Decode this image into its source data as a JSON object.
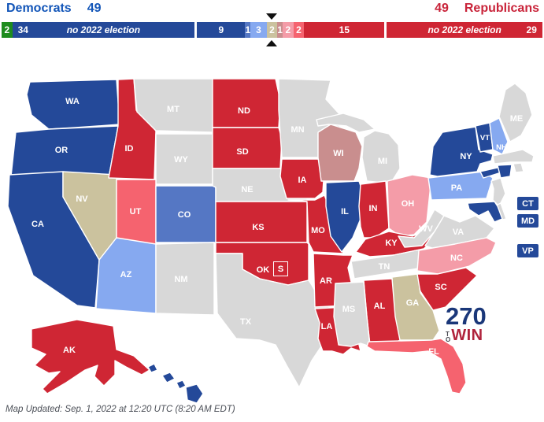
{
  "header": {
    "democrats_label": "Democrats",
    "democrats_count": "49",
    "republicans_count": "49",
    "republicans_label": "Republicans"
  },
  "bar": {
    "no_election_note": "no 2022 election",
    "segments": [
      {
        "id": "independent-no-election",
        "seats": 2,
        "display": "2",
        "category": "independent"
      },
      {
        "id": "dem-no-election",
        "seats": 34,
        "display": "34",
        "category": "safe_dem",
        "note": true
      },
      {
        "id": "dem-safe",
        "seats": 9,
        "display": "9",
        "category": "safe_dem",
        "gap_before": true
      },
      {
        "id": "dem-likely",
        "seats": 1,
        "display": "1",
        "category": "likely_dem"
      },
      {
        "id": "dem-lean",
        "seats": 3,
        "display": "3",
        "category": "lean_dem"
      },
      {
        "id": "tossup",
        "seats": 2,
        "display": "2",
        "category": "tossup"
      },
      {
        "id": "rep-tilt",
        "seats": 1,
        "display": "1",
        "category": "tilt_rep"
      },
      {
        "id": "rep-lean",
        "seats": 2,
        "display": "2",
        "category": "lean_rep"
      },
      {
        "id": "rep-likely",
        "seats": 2,
        "display": "2",
        "category": "likely_rep"
      },
      {
        "id": "rep-safe",
        "seats": 15,
        "display": "15",
        "category": "safe_rep"
      },
      {
        "id": "rep-no-election",
        "seats": 29,
        "display": "29",
        "category": "safe_rep",
        "note": true,
        "num_right": true,
        "gap_before": true
      }
    ]
  },
  "map": {
    "special_marker": {
      "state": "OK",
      "label": "S"
    },
    "states": [
      {
        "code": "WA",
        "category": "safe_dem",
        "labeled": true
      },
      {
        "code": "OR",
        "category": "safe_dem",
        "labeled": true
      },
      {
        "code": "CA",
        "category": "safe_dem",
        "labeled": true
      },
      {
        "code": "NV",
        "category": "tossup",
        "labeled": true
      },
      {
        "code": "ID",
        "category": "safe_rep",
        "labeled": true
      },
      {
        "code": "MT",
        "category": "no_election",
        "labeled": true
      },
      {
        "code": "WY",
        "category": "no_election",
        "labeled": true
      },
      {
        "code": "UT",
        "category": "likely_rep",
        "labeled": true
      },
      {
        "code": "AZ",
        "category": "lean_dem",
        "labeled": true
      },
      {
        "code": "CO",
        "category": "likely_dem",
        "labeled": true
      },
      {
        "code": "NM",
        "category": "no_election",
        "labeled": true
      },
      {
        "code": "ND",
        "category": "safe_rep",
        "labeled": true
      },
      {
        "code": "SD",
        "category": "safe_rep",
        "labeled": true
      },
      {
        "code": "NE",
        "category": "no_election",
        "labeled": true
      },
      {
        "code": "KS",
        "category": "safe_rep",
        "labeled": true
      },
      {
        "code": "OK",
        "category": "safe_rep",
        "labeled": true
      },
      {
        "code": "TX",
        "category": "no_election",
        "labeled": true
      },
      {
        "code": "MN",
        "category": "no_election",
        "labeled": true
      },
      {
        "code": "IA",
        "category": "safe_rep",
        "labeled": true
      },
      {
        "code": "MO",
        "category": "safe_rep",
        "labeled": true
      },
      {
        "code": "AR",
        "category": "safe_rep",
        "labeled": true
      },
      {
        "code": "LA",
        "category": "safe_rep",
        "labeled": true
      },
      {
        "code": "WI",
        "category": "tilt_rep",
        "labeled": true
      },
      {
        "code": "IL",
        "category": "safe_dem",
        "labeled": true
      },
      {
        "code": "MI",
        "category": "no_election",
        "labeled": true
      },
      {
        "code": "IN",
        "category": "safe_rep",
        "labeled": true
      },
      {
        "code": "OH",
        "category": "lean_rep",
        "labeled": true
      },
      {
        "code": "KY",
        "category": "safe_rep",
        "labeled": true
      },
      {
        "code": "TN",
        "category": "no_election",
        "labeled": true
      },
      {
        "code": "WV",
        "category": "no_election",
        "labeled": true
      },
      {
        "code": "VA",
        "category": "no_election",
        "labeled": true
      },
      {
        "code": "NC",
        "category": "lean_rep",
        "labeled": true
      },
      {
        "code": "SC",
        "category": "safe_rep",
        "labeled": true
      },
      {
        "code": "GA",
        "category": "tossup",
        "labeled": true
      },
      {
        "code": "AL",
        "category": "safe_rep",
        "labeled": true
      },
      {
        "code": "MS",
        "category": "no_election",
        "labeled": true
      },
      {
        "code": "FL",
        "category": "likely_rep",
        "labeled": true
      },
      {
        "code": "PA",
        "category": "lean_dem",
        "labeled": true
      },
      {
        "code": "NY",
        "category": "safe_dem",
        "labeled": true
      },
      {
        "code": "NJ",
        "category": "no_election",
        "labeled": false
      },
      {
        "code": "VT",
        "category": "safe_dem",
        "labeled": true
      },
      {
        "code": "NH",
        "category": "lean_dem",
        "labeled": true
      },
      {
        "code": "ME",
        "category": "no_election",
        "labeled": true
      },
      {
        "code": "MA",
        "category": "no_election",
        "labeled": false
      },
      {
        "code": "RI",
        "category": "no_election",
        "labeled": false
      },
      {
        "code": "CT",
        "category": "safe_dem",
        "labeled": false
      },
      {
        "code": "DE",
        "category": "no_election",
        "labeled": false
      },
      {
        "code": "MD",
        "category": "safe_dem",
        "labeled": false
      },
      {
        "code": "AK",
        "category": "safe_rep",
        "labeled": true
      },
      {
        "code": "HI",
        "category": "safe_dem",
        "labeled": true
      }
    ]
  },
  "side_boxes": [
    {
      "label": "CT",
      "category": "safe_dem"
    },
    {
      "label": "MD",
      "category": "safe_dem"
    },
    {
      "label": "VP",
      "category": "safe_dem"
    }
  ],
  "logo": {
    "line1": "270",
    "to": "TO",
    "win": "WIN",
    "color_270": "#1a3779",
    "color_to": "#4a4a52",
    "color_win": "#b0233c"
  },
  "footer": {
    "updated": "Map Updated: Sep. 1, 2022 at 12:20 UTC (8:20 AM EDT)"
  },
  "colors": {
    "safe_dem": "#244999",
    "likely_dem": "#5577c4",
    "lean_dem": "#86a9f0",
    "tossup": "#cbc29e",
    "tilt_rep": "#c98e8e",
    "lean_rep": "#f49ca8",
    "likely_rep": "#f5636f",
    "safe_rep": "#cf2634",
    "no_election": "#d8d8d8",
    "independent": "#1e8c1e",
    "dem_text": "#1255b8",
    "rep_text": "#c9243a"
  }
}
